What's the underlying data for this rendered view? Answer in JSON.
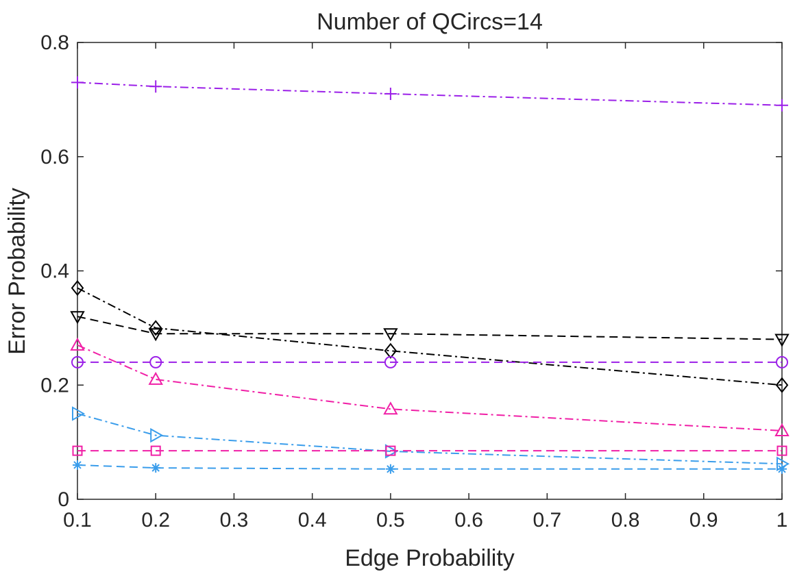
{
  "chart_data": {
    "type": "line",
    "title": "Number of QCircs=14",
    "xlabel": "Edge Probability",
    "ylabel": "Error Probability",
    "xlim": [
      0.1,
      1
    ],
    "ylim": [
      0,
      0.8
    ],
    "xticks": [
      0.1,
      0.2,
      0.3,
      0.4,
      0.5,
      0.6,
      0.7,
      0.8,
      0.9,
      1
    ],
    "xtick_labels": [
      "0.1",
      "0.2",
      "0.3",
      "0.4",
      "0.5",
      "0.6",
      "0.7",
      "0.8",
      "0.9",
      "1"
    ],
    "yticks": [
      0,
      0.2,
      0.4,
      0.6,
      0.8
    ],
    "ytick_labels": [
      "0",
      "0.2",
      "0.4",
      "0.6",
      "0.8"
    ],
    "grid": false,
    "x": [
      0.1,
      0.2,
      0.5,
      1
    ],
    "series": [
      {
        "key": "plus",
        "color": "#9B1FE8",
        "dash": "dashdot",
        "marker": "plus",
        "values": [
          0.73,
          0.723,
          0.71,
          0.69
        ]
      },
      {
        "key": "diamond",
        "color": "#000000",
        "dash": "dashdot",
        "marker": "diamond",
        "values": [
          0.37,
          0.3,
          0.26,
          0.2
        ]
      },
      {
        "key": "tri-down",
        "color": "#000000",
        "dash": "dashed",
        "marker": "triangle-down",
        "values": [
          0.32,
          0.29,
          0.29,
          0.28
        ]
      },
      {
        "key": "tri-up",
        "color": "#F01FA6",
        "dash": "dashdot",
        "marker": "triangle-up",
        "values": [
          0.27,
          0.21,
          0.158,
          0.12
        ]
      },
      {
        "key": "circle",
        "color": "#9B1FE8",
        "dash": "dashed",
        "marker": "circle",
        "values": [
          0.24,
          0.24,
          0.24,
          0.24
        ]
      },
      {
        "key": "tri-right",
        "color": "#3A9DEB",
        "dash": "dashdot",
        "marker": "triangle-right",
        "values": [
          0.15,
          0.112,
          0.084,
          0.062
        ]
      },
      {
        "key": "square",
        "color": "#F01FA6",
        "dash": "dashed",
        "marker": "square",
        "values": [
          0.085,
          0.085,
          0.085,
          0.085
        ]
      },
      {
        "key": "asterisk",
        "color": "#3A9DEB",
        "dash": "dashed",
        "marker": "asterisk",
        "values": [
          0.06,
          0.055,
          0.053,
          0.053
        ]
      }
    ]
  }
}
